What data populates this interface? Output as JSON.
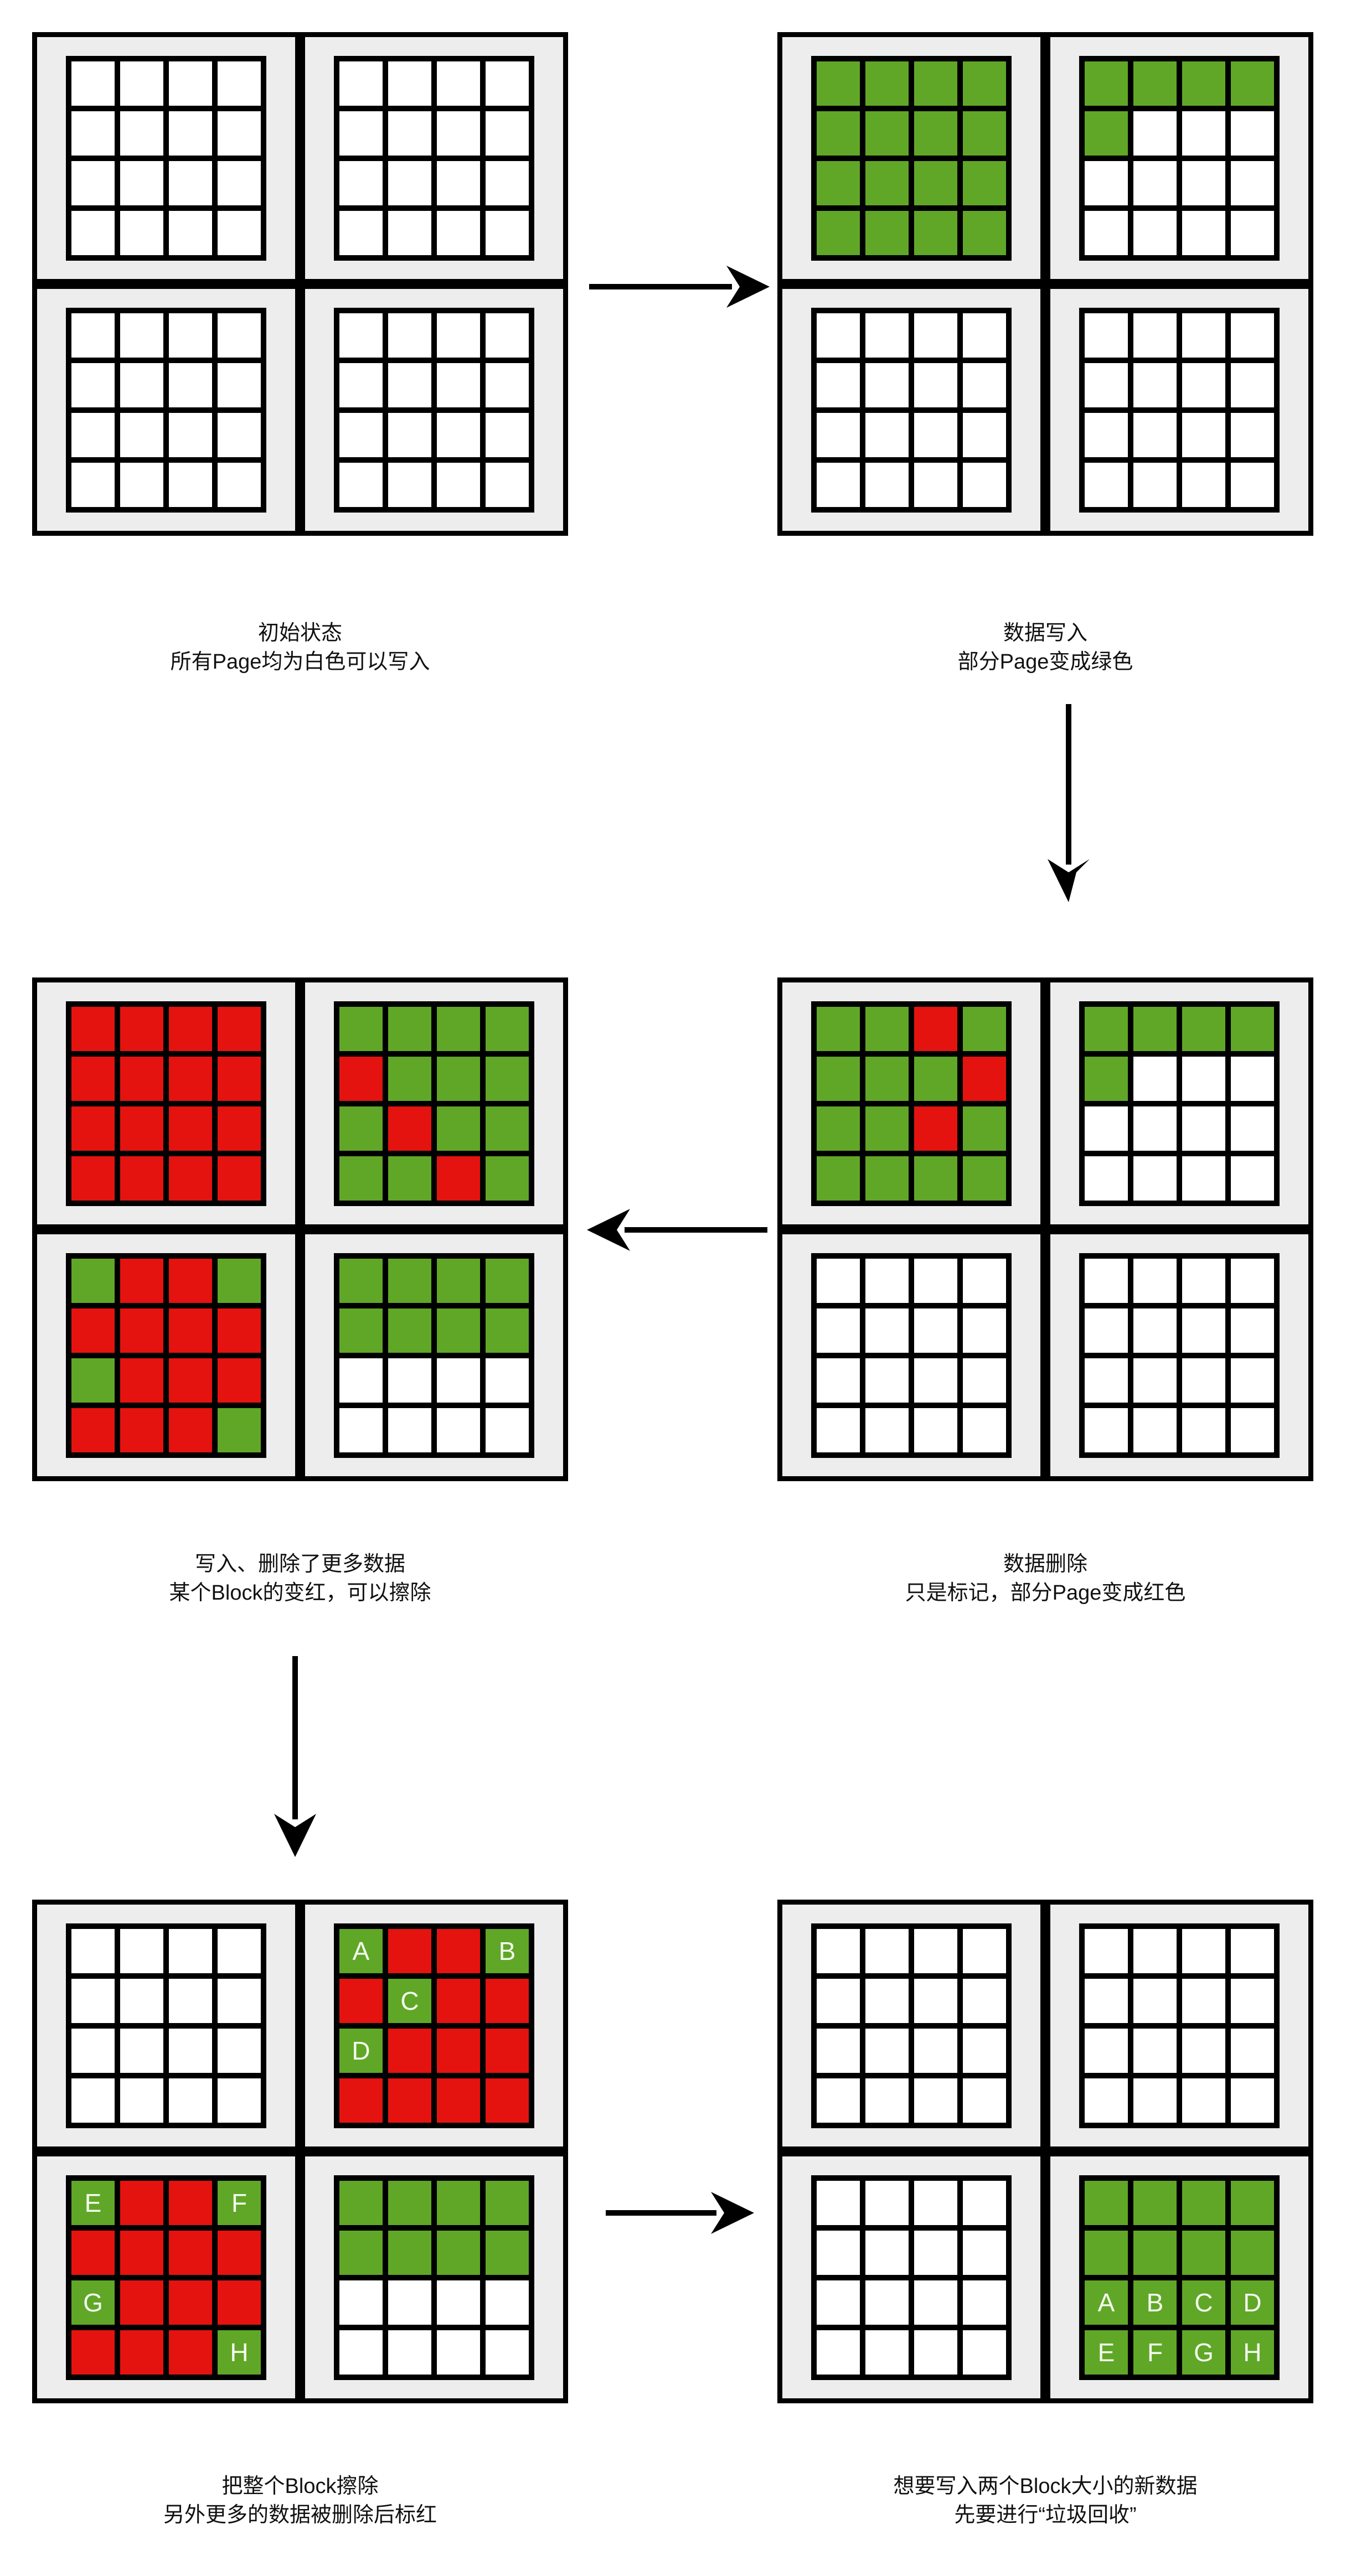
{
  "colors": {
    "green": "#60a727",
    "red": "#e41310",
    "white": "#ffffff",
    "block_background": "#ededed",
    "border": "#000000"
  },
  "legend": {
    "cell_codes": "W=blank writable page, G=green valid-data page, R=red deleted/stale page, G:X=green page holding data labelled X"
  },
  "panels": [
    {
      "name": "initial-state",
      "caption_line1": "初始状态",
      "caption_line2": "所有Page均为白色可以写入",
      "blocks": [
        {
          "cells": [
            "W",
            "W",
            "W",
            "W",
            "W",
            "W",
            "W",
            "W",
            "W",
            "W",
            "W",
            "W",
            "W",
            "W",
            "W",
            "W"
          ]
        },
        {
          "cells": [
            "W",
            "W",
            "W",
            "W",
            "W",
            "W",
            "W",
            "W",
            "W",
            "W",
            "W",
            "W",
            "W",
            "W",
            "W",
            "W"
          ]
        },
        {
          "cells": [
            "W",
            "W",
            "W",
            "W",
            "W",
            "W",
            "W",
            "W",
            "W",
            "W",
            "W",
            "W",
            "W",
            "W",
            "W",
            "W"
          ]
        },
        {
          "cells": [
            "W",
            "W",
            "W",
            "W",
            "W",
            "W",
            "W",
            "W",
            "W",
            "W",
            "W",
            "W",
            "W",
            "W",
            "W",
            "W"
          ]
        }
      ]
    },
    {
      "name": "data-written",
      "caption_line1": "数据写入",
      "caption_line2": "部分Page变成绿色",
      "blocks": [
        {
          "cells": [
            "G",
            "G",
            "G",
            "G",
            "G",
            "G",
            "G",
            "G",
            "G",
            "G",
            "G",
            "G",
            "G",
            "G",
            "G",
            "G"
          ]
        },
        {
          "cells": [
            "G",
            "G",
            "G",
            "G",
            "G",
            "W",
            "W",
            "W",
            "W",
            "W",
            "W",
            "W",
            "W",
            "W",
            "W",
            "W"
          ]
        },
        {
          "cells": [
            "W",
            "W",
            "W",
            "W",
            "W",
            "W",
            "W",
            "W",
            "W",
            "W",
            "W",
            "W",
            "W",
            "W",
            "W",
            "W"
          ]
        },
        {
          "cells": [
            "W",
            "W",
            "W",
            "W",
            "W",
            "W",
            "W",
            "W",
            "W",
            "W",
            "W",
            "W",
            "W",
            "W",
            "W",
            "W"
          ]
        }
      ]
    },
    {
      "name": "more-writes-and-deletes",
      "caption_line1": "写入、删除了更多数据",
      "caption_line2": "某个Block的变红，可以擦除",
      "blocks": [
        {
          "cells": [
            "R",
            "R",
            "R",
            "R",
            "R",
            "R",
            "R",
            "R",
            "R",
            "R",
            "R",
            "R",
            "R",
            "R",
            "R",
            "R"
          ]
        },
        {
          "cells": [
            "G",
            "G",
            "G",
            "G",
            "R",
            "G",
            "G",
            "G",
            "G",
            "R",
            "G",
            "G",
            "G",
            "G",
            "R",
            "G"
          ]
        },
        {
          "cells": [
            "G",
            "R",
            "R",
            "G",
            "R",
            "R",
            "R",
            "R",
            "G",
            "R",
            "R",
            "R",
            "R",
            "R",
            "R",
            "G"
          ]
        },
        {
          "cells": [
            "G",
            "G",
            "G",
            "G",
            "G",
            "G",
            "G",
            "G",
            "W",
            "W",
            "W",
            "W",
            "W",
            "W",
            "W",
            "W"
          ]
        }
      ]
    },
    {
      "name": "data-deleted",
      "caption_line1": "数据删除",
      "caption_line2": "只是标记，部分Page变成红色",
      "blocks": [
        {
          "cells": [
            "G",
            "G",
            "R",
            "G",
            "G",
            "G",
            "G",
            "R",
            "G",
            "G",
            "R",
            "G",
            "G",
            "G",
            "G",
            "G"
          ]
        },
        {
          "cells": [
            "G",
            "G",
            "G",
            "G",
            "G",
            "W",
            "W",
            "W",
            "W",
            "W",
            "W",
            "W",
            "W",
            "W",
            "W",
            "W"
          ]
        },
        {
          "cells": [
            "W",
            "W",
            "W",
            "W",
            "W",
            "W",
            "W",
            "W",
            "W",
            "W",
            "W",
            "W",
            "W",
            "W",
            "W",
            "W"
          ]
        },
        {
          "cells": [
            "W",
            "W",
            "W",
            "W",
            "W",
            "W",
            "W",
            "W",
            "W",
            "W",
            "W",
            "W",
            "W",
            "W",
            "W",
            "W"
          ]
        }
      ]
    },
    {
      "name": "block-erased-more-marked",
      "caption_line1": "把整个Block擦除",
      "caption_line2": "另外更多的数据被删除后标红",
      "blocks": [
        {
          "cells": [
            "W",
            "W",
            "W",
            "W",
            "W",
            "W",
            "W",
            "W",
            "W",
            "W",
            "W",
            "W",
            "W",
            "W",
            "W",
            "W"
          ]
        },
        {
          "cells": [
            "G:A",
            "R",
            "R",
            "G:B",
            "R",
            "G:C",
            "R",
            "R",
            "G:D",
            "R",
            "R",
            "R",
            "R",
            "R",
            "R",
            "R"
          ]
        },
        {
          "cells": [
            "G:E",
            "R",
            "R",
            "G:F",
            "R",
            "R",
            "R",
            "R",
            "G:G",
            "R",
            "R",
            "R",
            "R",
            "R",
            "R",
            "G:H"
          ]
        },
        {
          "cells": [
            "G",
            "G",
            "G",
            "G",
            "G",
            "G",
            "G",
            "G",
            "W",
            "W",
            "W",
            "W",
            "W",
            "W",
            "W",
            "W"
          ]
        }
      ]
    },
    {
      "name": "after-garbage-collection",
      "caption_line1": "想要写入两个Block大小的新数据",
      "caption_line2": "先要进行“垃圾回收”",
      "blocks": [
        {
          "cells": [
            "W",
            "W",
            "W",
            "W",
            "W",
            "W",
            "W",
            "W",
            "W",
            "W",
            "W",
            "W",
            "W",
            "W",
            "W",
            "W"
          ]
        },
        {
          "cells": [
            "W",
            "W",
            "W",
            "W",
            "W",
            "W",
            "W",
            "W",
            "W",
            "W",
            "W",
            "W",
            "W",
            "W",
            "W",
            "W"
          ]
        },
        {
          "cells": [
            "W",
            "W",
            "W",
            "W",
            "W",
            "W",
            "W",
            "W",
            "W",
            "W",
            "W",
            "W",
            "W",
            "W",
            "W",
            "W"
          ]
        },
        {
          "cells": [
            "G",
            "G",
            "G",
            "G",
            "G",
            "G",
            "G",
            "G",
            "G:A",
            "G:B",
            "G:C",
            "G:D",
            "G:E",
            "G:F",
            "G:G",
            "G:H"
          ]
        }
      ]
    }
  ],
  "arrows": [
    {
      "name": "arrow-initial-to-written",
      "from": "initial-state",
      "to": "data-written",
      "direction": "right"
    },
    {
      "name": "arrow-written-to-deleted",
      "from": "data-written",
      "to": "data-deleted",
      "direction": "down"
    },
    {
      "name": "arrow-deleted-to-more",
      "from": "data-deleted",
      "to": "more-writes-and-deletes",
      "direction": "left"
    },
    {
      "name": "arrow-more-to-erased",
      "from": "more-writes-and-deletes",
      "to": "block-erased-more-marked",
      "direction": "down"
    },
    {
      "name": "arrow-erased-to-gc",
      "from": "block-erased-more-marked",
      "to": "after-garbage-collection",
      "direction": "right"
    }
  ]
}
